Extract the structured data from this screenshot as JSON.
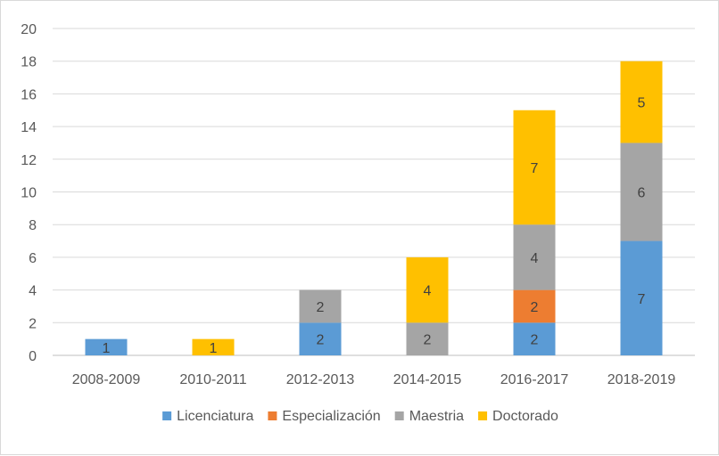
{
  "chart_data": {
    "type": "bar",
    "stacked": true,
    "categories": [
      "2008-2009",
      "2010-2011",
      "2012-2013",
      "2014-2015",
      "2016-2017",
      "2018-2019"
    ],
    "series": [
      {
        "name": "Licenciatura",
        "color": "#5b9bd5",
        "values": [
          1,
          0,
          2,
          0,
          2,
          7
        ]
      },
      {
        "name": "Especialización",
        "color": "#ed7d31",
        "values": [
          0,
          0,
          0,
          0,
          2,
          0
        ]
      },
      {
        "name": "Maestria",
        "color": "#a5a5a5",
        "values": [
          0,
          0,
          2,
          2,
          4,
          6
        ]
      },
      {
        "name": "Doctorado",
        "color": "#ffc000",
        "values": [
          0,
          1,
          0,
          4,
          7,
          5
        ]
      }
    ],
    "ylim": [
      0,
      20
    ],
    "yticks": [
      0,
      2,
      4,
      6,
      8,
      10,
      12,
      14,
      16,
      18,
      20
    ],
    "grid": true,
    "legend_position": "bottom",
    "title": "",
    "xlabel": "",
    "ylabel": ""
  }
}
